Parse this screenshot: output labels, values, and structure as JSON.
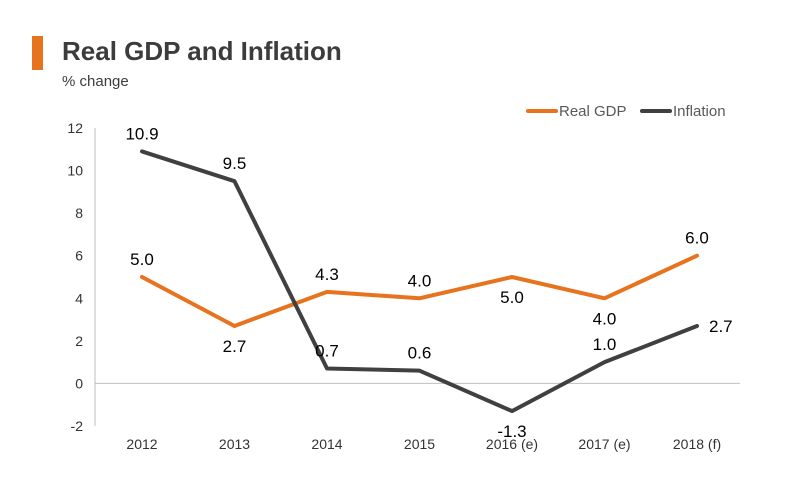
{
  "header": {
    "title": "Real GDP and Inflation",
    "subtitle": "% change"
  },
  "chart_data": {
    "type": "line",
    "title": "Real GDP and Inflation",
    "subtitle": "% change",
    "categories": [
      "2012",
      "2013",
      "2014",
      "2015",
      "2016 (e)",
      "2017 (e)",
      "2018 (f)"
    ],
    "series": [
      {
        "name": "Real GDP",
        "color": "#e8731e",
        "values": [
          5.0,
          2.7,
          4.3,
          4.0,
          5.0,
          4.0,
          6.0
        ],
        "labels": [
          "5.0",
          "2.7",
          "4.3",
          "4.0",
          "5.0",
          "4.0",
          "6.0"
        ]
      },
      {
        "name": "Inflation",
        "color": "#404040",
        "values": [
          10.9,
          9.5,
          0.7,
          0.6,
          -1.3,
          1.0,
          2.7
        ],
        "labels": [
          "10.9",
          "9.5",
          "0.7",
          "0.6",
          "-1.3",
          "1.0",
          "2.7"
        ]
      }
    ],
    "ylim": [
      -2,
      12
    ],
    "yticks": [
      "-2",
      "0",
      "2",
      "4",
      "6",
      "8",
      "10",
      "12"
    ],
    "xlabel": "",
    "ylabel": "",
    "grid": false,
    "legend_position": "top-right"
  }
}
